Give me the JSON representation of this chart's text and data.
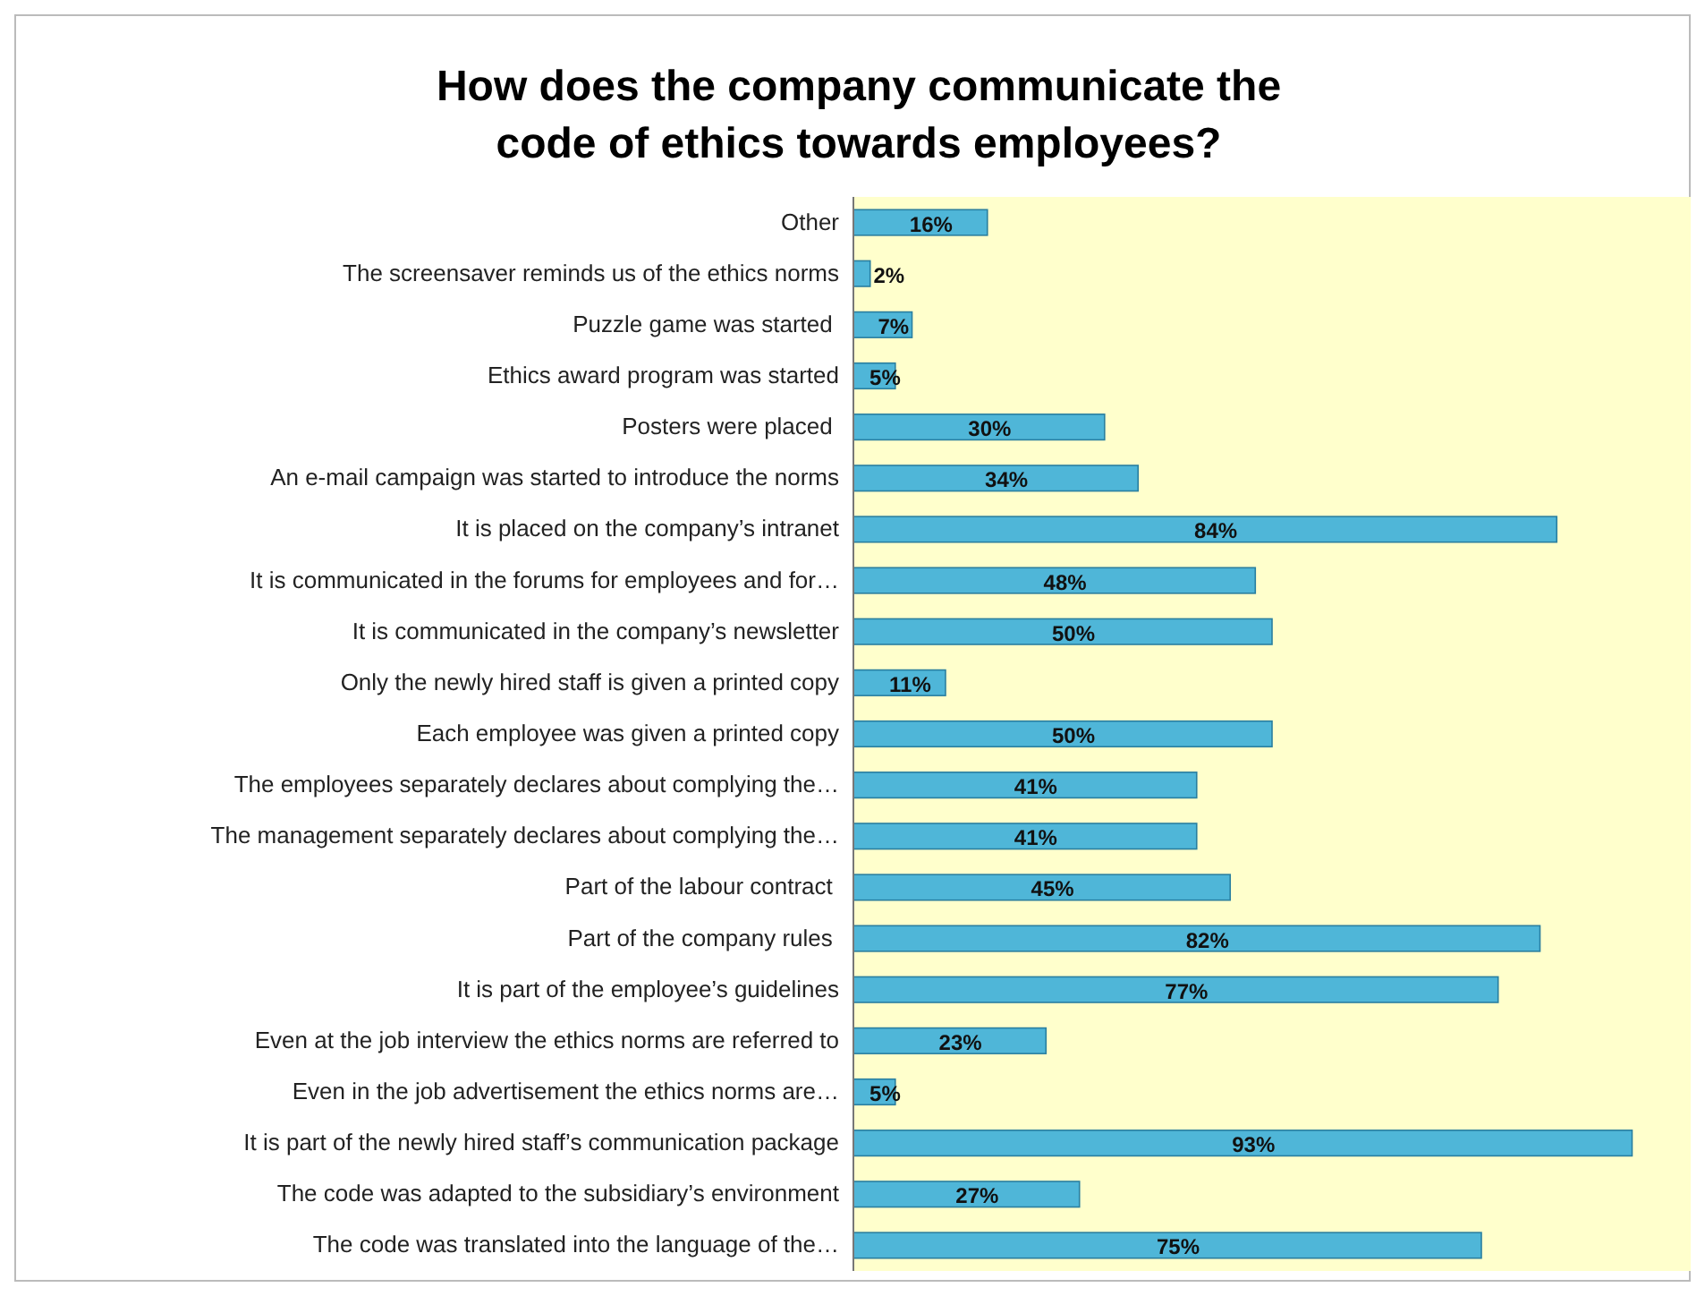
{
  "chart_data": {
    "type": "bar",
    "orientation": "horizontal",
    "title": "How does the company communicate the code of ethics towards employees?",
    "categories": [
      "Other",
      "The screensaver reminds us of the ethics norms",
      "Puzzle game was started ",
      "Ethics award program was started",
      "Posters were placed ",
      "An e-mail campaign was started to introduce the norms",
      "It is placed on the company’s intranet",
      "It is communicated in the forums for employees and for…",
      "It is communicated in the company’s newsletter",
      "Only the newly hired staff is given a printed copy",
      "Each employee was given a printed copy",
      "The employees separately declares about complying the…",
      "The management separately declares about complying the…",
      "Part of the labour contract ",
      "Part of the company rules ",
      "It is part of the employee’s guidelines",
      "Even at the job interview the ethics norms are referred to",
      "Even in the job advertisement the ethics norms are…",
      "It is part of the newly hired staff’s communication package",
      "The code was adapted to the subsidiary’s environment",
      "The code was translated into the language of the…"
    ],
    "values": [
      16,
      2,
      7,
      5,
      30,
      34,
      84,
      48,
      50,
      11,
      50,
      41,
      41,
      45,
      82,
      77,
      23,
      5,
      93,
      27,
      75
    ],
    "value_labels": [
      "16%",
      "2%",
      "7%",
      "5%",
      "30%",
      "34%",
      "84%",
      "48%",
      "50%",
      "11%",
      "50%",
      "41%",
      "41%",
      "45%",
      "82%",
      "77%",
      "23%",
      "5%",
      "93%",
      "27%",
      "75%"
    ],
    "color": "#4fb6d8",
    "xlim": [
      0,
      100
    ],
    "tick_labels": "y"
  }
}
